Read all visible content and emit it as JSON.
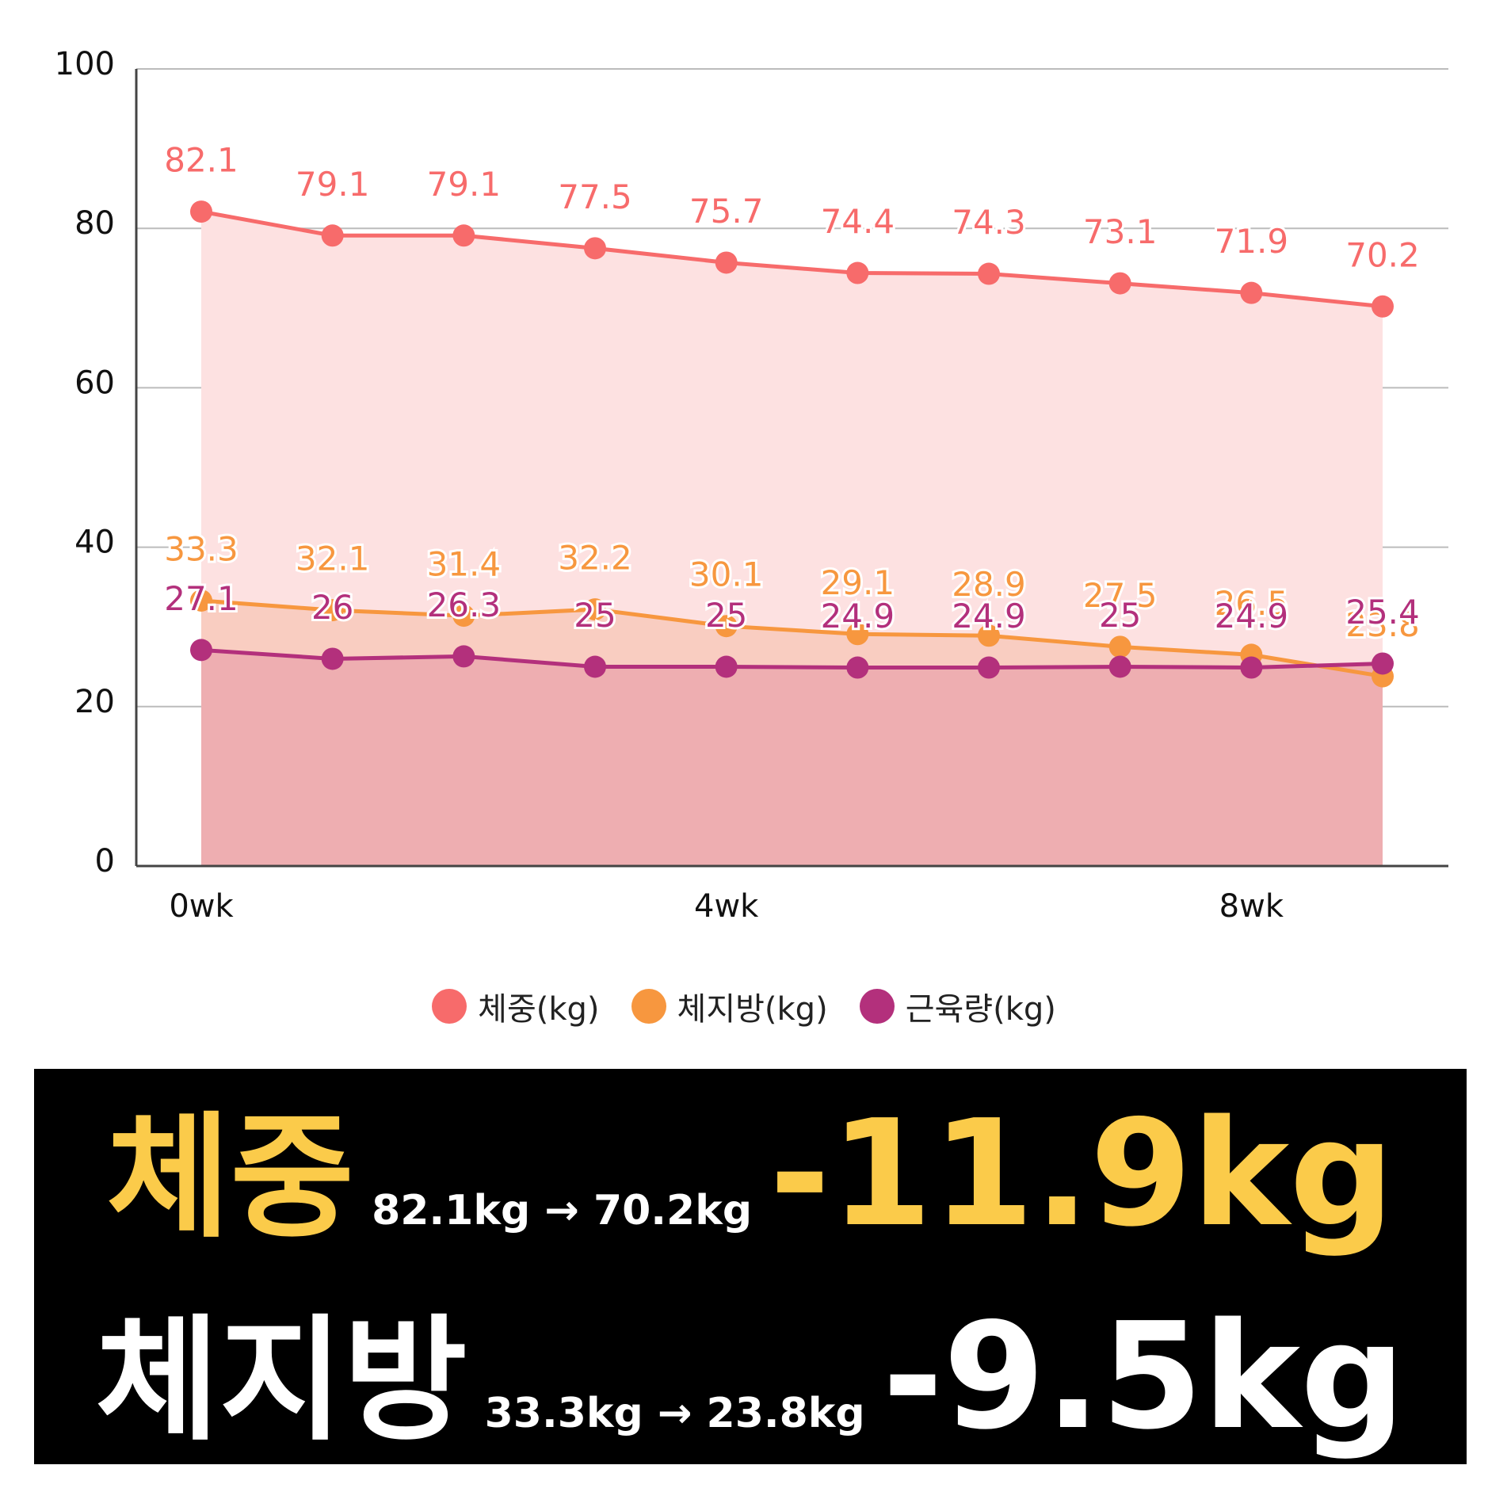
{
  "chart_data": {
    "type": "line",
    "categories": [
      "0wk",
      null,
      null,
      null,
      "4wk",
      null,
      null,
      null,
      "8wk",
      null
    ],
    "series": [
      {
        "name": "체중(kg)",
        "color": "#f76b6b",
        "area_color": "#fde1e1",
        "values": [
          82.1,
          79.1,
          79.1,
          77.5,
          75.7,
          74.4,
          74.3,
          73.1,
          71.9,
          70.2
        ]
      },
      {
        "name": "체지방(kg)",
        "color": "#f7973f",
        "area_color": "#f9cdc1",
        "values": [
          33.3,
          32.1,
          31.4,
          32.2,
          30.1,
          29.1,
          28.9,
          27.5,
          26.5,
          23.8
        ]
      },
      {
        "name": "근육량(kg)",
        "color": "#b3307c",
        "area_color": "#eeaeb1",
        "values": [
          27.1,
          26,
          26.3,
          25,
          25,
          24.9,
          24.9,
          25,
          24.9,
          25.4
        ]
      }
    ],
    "ylim": [
      0,
      100
    ],
    "yticks": [
      0,
      20,
      40,
      60,
      80,
      100
    ],
    "grid": true,
    "legend": "bottom"
  },
  "summary": [
    {
      "label": "체중",
      "detail": "82.1kg → 70.2kg",
      "change": "-11.9kg",
      "color": "#fbcb4a"
    },
    {
      "label": "체지방",
      "detail": "33.3kg → 23.8kg",
      "change": "-9.5kg",
      "color": "#ffffff"
    }
  ]
}
